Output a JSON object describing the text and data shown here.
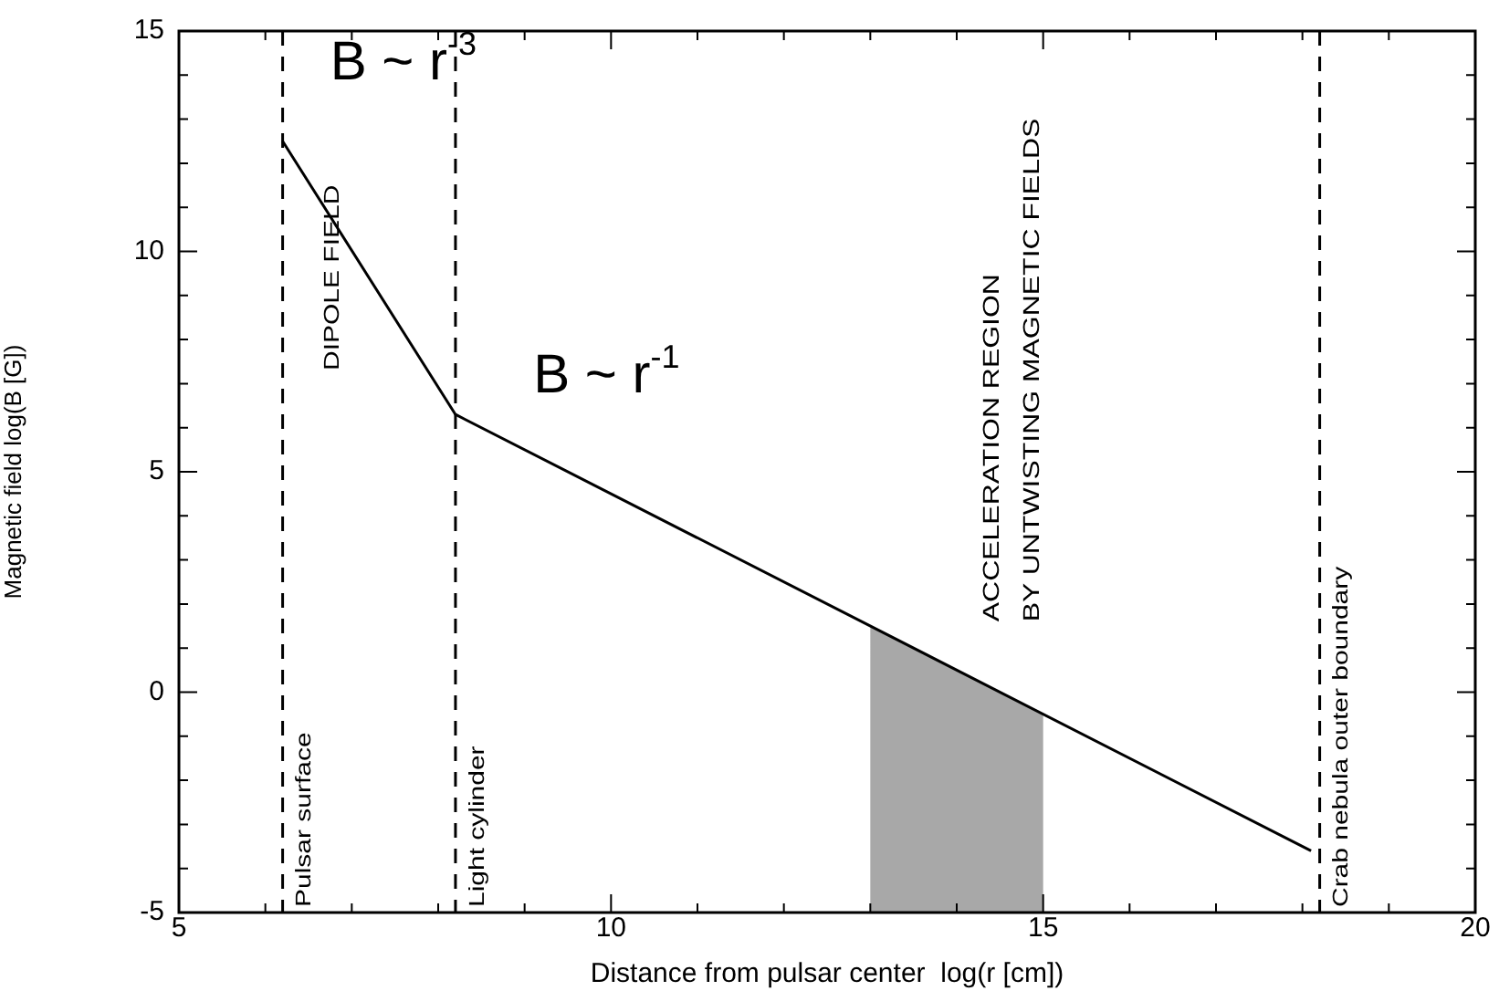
{
  "chart_data": {
    "type": "line",
    "xlabel": "Distance from pulsar center  log(r [cm])",
    "ylabel": "Magnetic field log(B [G])",
    "series": [
      {
        "color": "#000000",
        "x": [
          6.2,
          8.2,
          18.1
        ],
        "values": [
          12.5,
          6.3,
          -3.6
        ]
      }
    ],
    "xlim": [
      5,
      20
    ],
    "ylim": [
      -5,
      15
    ],
    "xticks": [
      5,
      {
        "value": 6,
        "label": null
      },
      {
        "value": 7,
        "label": null
      },
      {
        "value": 8,
        "label": null
      },
      {
        "value": 9,
        "label": null
      },
      10,
      {
        "value": 11,
        "label": null
      },
      {
        "value": 12,
        "label": null
      },
      {
        "value": 13,
        "label": null
      },
      {
        "value": 14,
        "label": null
      },
      15,
      {
        "value": 16,
        "label": null
      },
      {
        "value": 17,
        "label": null
      },
      {
        "value": 18,
        "label": null
      },
      {
        "value": 19,
        "label": null
      },
      20
    ],
    "yticks": [
      -5,
      {
        "value": -4,
        "label": null
      },
      {
        "value": -3,
        "label": null
      },
      {
        "value": -2,
        "label": null
      },
      {
        "value": -1,
        "label": null
      },
      0,
      {
        "value": 1,
        "label": null
      },
      {
        "value": 2,
        "label": null
      },
      {
        "value": 3,
        "label": null
      },
      {
        "value": 4,
        "label": null
      },
      5,
      {
        "value": 6,
        "label": null
      },
      {
        "value": 7,
        "label": null
      },
      {
        "value": 8,
        "label": null
      },
      {
        "value": 9,
        "label": null
      },
      10,
      {
        "value": 11,
        "label": null
      },
      {
        "value": 12,
        "label": null
      },
      {
        "value": 13,
        "label": null
      },
      {
        "value": 14,
        "label": null
      },
      15
    ],
    "ref_lines": [
      {
        "axis": "x",
        "value": 6.2,
        "label": "Pulsar surface",
        "color": "#000000",
        "line_style": "dashed"
      },
      {
        "axis": "x",
        "value": 8.2,
        "label": "Light cylinder",
        "color": "#000000",
        "line_style": "dashed"
      },
      {
        "axis": "x",
        "value": 18.2,
        "label": "Crab nebula outer boundary",
        "color": "#000000",
        "line_style": "dashed"
      }
    ],
    "bands": [
      {
        "axis": "x",
        "from": 13,
        "to": 15,
        "label": "ACCELERATION REGION\nBY UNTWISTING MAGNETIC FIELDS",
        "color": "#a8a8a8"
      }
    ],
    "annotations": [
      "B ~ r$^{-3}$",
      "B ~ r$^{-1}$",
      "DIPOLE FIELD"
    ],
    "grid": false,
    "legend": false,
    "marker": "none",
    "line_style": "solid"
  }
}
